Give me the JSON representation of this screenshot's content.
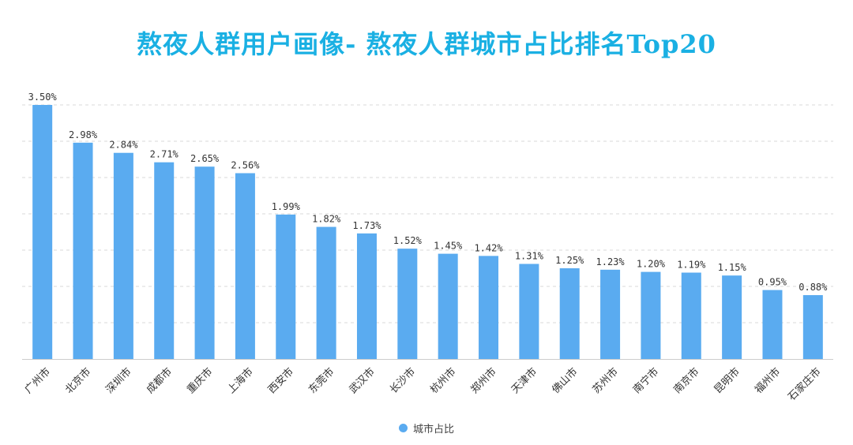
{
  "page_title": "熬夜人群用户画像- 熬夜人群城市占比排名Top20",
  "colors": {
    "bar": "#5aabf0",
    "title": "#1ab0e3",
    "grid": "#d9d9d9",
    "label": "#333333"
  },
  "legend": {
    "label": "城市占比"
  },
  "chart_data": {
    "type": "bar",
    "title": "熬夜人群用户画像- 熬夜人群城市占比排名Top20",
    "xlabel": "",
    "ylabel": "",
    "ylim": [
      0,
      3.5
    ],
    "grid": true,
    "legend_position": "bottom",
    "categories": [
      "广州市",
      "北京市",
      "深圳市",
      "成都市",
      "重庆市",
      "上海市",
      "西安市",
      "东莞市",
      "武汉市",
      "长沙市",
      "杭州市",
      "郑州市",
      "天津市",
      "佛山市",
      "苏州市",
      "南宁市",
      "南京市",
      "昆明市",
      "福州市",
      "石家庄市"
    ],
    "series": [
      {
        "name": "城市占比",
        "values": [
          3.5,
          2.98,
          2.84,
          2.71,
          2.65,
          2.56,
          1.99,
          1.82,
          1.73,
          1.52,
          1.45,
          1.42,
          1.31,
          1.25,
          1.23,
          1.2,
          1.19,
          1.15,
          0.95,
          0.88
        ],
        "labels": [
          "3.50%",
          "2.98%",
          "2.84%",
          "2.71%",
          "2.65%",
          "2.56%",
          "1.99%",
          "1.82%",
          "1.73%",
          "1.52%",
          "1.45%",
          "1.42%",
          "1.31%",
          "1.25%",
          "1.23%",
          "1.20%",
          "1.19%",
          "1.15%",
          "0.95%",
          "0.88%"
        ]
      }
    ]
  }
}
